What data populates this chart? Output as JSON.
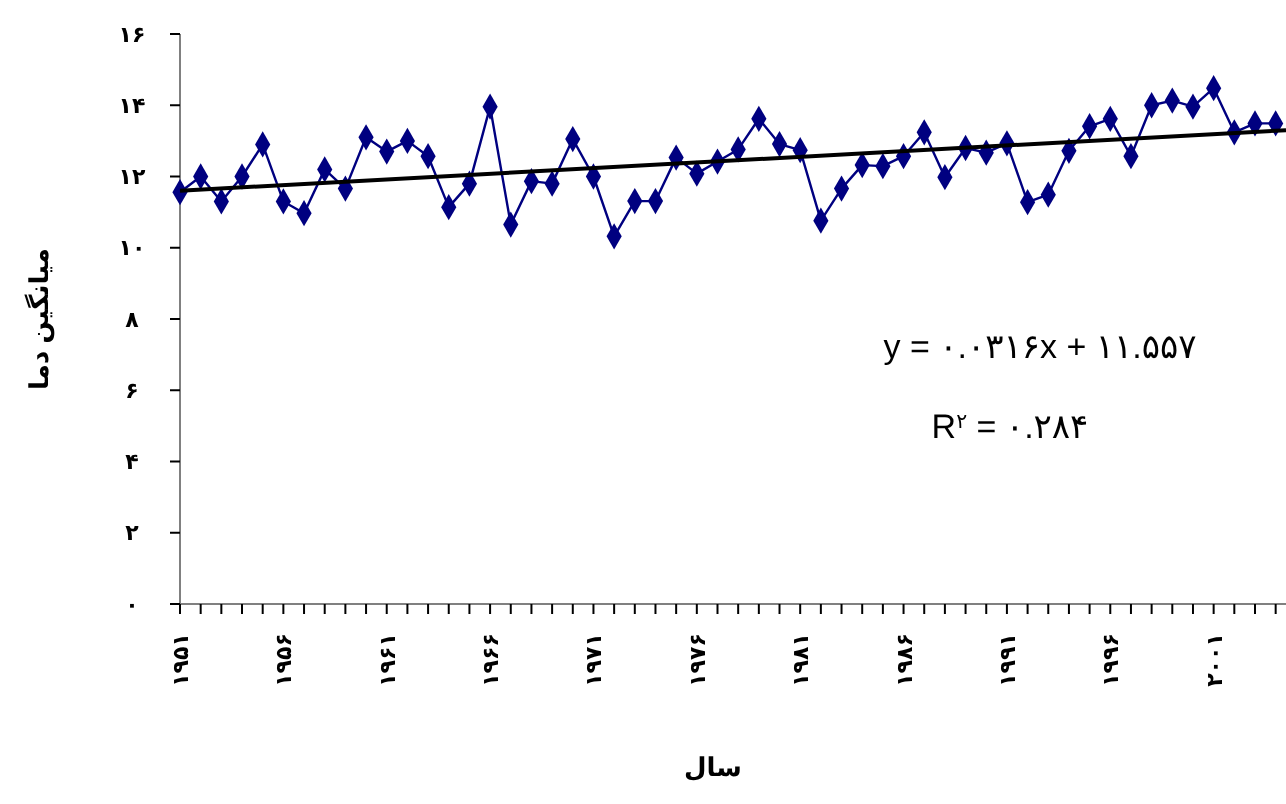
{
  "chart_data": {
    "type": "line",
    "xlabel": "سال",
    "ylabel": "میانگین دما",
    "x": [
      1951,
      1952,
      1953,
      1954,
      1955,
      1956,
      1957,
      1958,
      1959,
      1960,
      1961,
      1962,
      1963,
      1964,
      1965,
      1966,
      1967,
      1968,
      1969,
      1970,
      1971,
      1972,
      1973,
      1974,
      1975,
      1976,
      1977,
      1978,
      1979,
      1980,
      1981,
      1982,
      1983,
      1984,
      1985,
      1986,
      1987,
      1988,
      1989,
      1990,
      1991,
      1992,
      1993,
      1994,
      1995,
      1996,
      1997,
      1998,
      1999,
      2000,
      2001,
      2002,
      2003,
      2004
    ],
    "series": [
      {
        "color": "#000080",
        "marker": "diamond",
        "values": [
          11.56,
          12.0,
          11.3,
          12.0,
          12.9,
          11.3,
          10.97,
          12.2,
          11.66,
          13.1,
          12.7,
          13.0,
          12.57,
          11.14,
          11.8,
          13.96,
          10.65,
          11.87,
          11.8,
          13.05,
          12.0,
          10.32,
          11.31,
          11.31,
          12.53,
          12.08,
          12.42,
          12.76,
          13.62,
          12.91,
          12.74,
          10.76,
          11.66,
          12.32,
          12.29,
          12.57,
          13.24,
          11.98,
          12.8,
          12.67,
          12.93,
          11.28,
          11.49,
          12.72,
          13.41,
          13.62,
          12.57,
          14.0,
          14.13,
          13.96,
          14.48,
          13.24,
          13.49,
          13.49
        ]
      },
      {
        "color": "#000000",
        "marker": "none",
        "x": [
          1951,
          2004.5
        ],
        "values": [
          11.6,
          13.3
        ]
      }
    ],
    "xlim": [
      1951,
      2004.5
    ],
    "xticks": [
      {
        "value": 1951,
        "label": "۱۹۵۱"
      },
      {
        "value": 1952,
        "label": null
      },
      {
        "value": 1953,
        "label": null
      },
      {
        "value": 1954,
        "label": null
      },
      {
        "value": 1955,
        "label": null
      },
      {
        "value": 1956,
        "label": "۱۹۵۶"
      },
      {
        "value": 1957,
        "label": null
      },
      {
        "value": 1958,
        "label": null
      },
      {
        "value": 1959,
        "label": null
      },
      {
        "value": 1960,
        "label": null
      },
      {
        "value": 1961,
        "label": "۱۹۶۱"
      },
      {
        "value": 1962,
        "label": null
      },
      {
        "value": 1963,
        "label": null
      },
      {
        "value": 1964,
        "label": null
      },
      {
        "value": 1965,
        "label": null
      },
      {
        "value": 1966,
        "label": "۱۹۶۶"
      },
      {
        "value": 1967,
        "label": null
      },
      {
        "value": 1968,
        "label": null
      },
      {
        "value": 1969,
        "label": null
      },
      {
        "value": 1970,
        "label": null
      },
      {
        "value": 1971,
        "label": "۱۹۷۱"
      },
      {
        "value": 1972,
        "label": null
      },
      {
        "value": 1973,
        "label": null
      },
      {
        "value": 1974,
        "label": null
      },
      {
        "value": 1975,
        "label": null
      },
      {
        "value": 1976,
        "label": "۱۹۷۶"
      },
      {
        "value": 1977,
        "label": null
      },
      {
        "value": 1978,
        "label": null
      },
      {
        "value": 1979,
        "label": null
      },
      {
        "value": 1980,
        "label": null
      },
      {
        "value": 1981,
        "label": "۱۹۸۱"
      },
      {
        "value": 1982,
        "label": null
      },
      {
        "value": 1983,
        "label": null
      },
      {
        "value": 1984,
        "label": null
      },
      {
        "value": 1985,
        "label": null
      },
      {
        "value": 1986,
        "label": "۱۹۸۶"
      },
      {
        "value": 1987,
        "label": null
      },
      {
        "value": 1988,
        "label": null
      },
      {
        "value": 1989,
        "label": null
      },
      {
        "value": 1990,
        "label": null
      },
      {
        "value": 1991,
        "label": "۱۹۹۱"
      },
      {
        "value": 1992,
        "label": null
      },
      {
        "value": 1993,
        "label": null
      },
      {
        "value": 1994,
        "label": null
      },
      {
        "value": 1995,
        "label": null
      },
      {
        "value": 1996,
        "label": "۱۹۹۶"
      },
      {
        "value": 1997,
        "label": null
      },
      {
        "value": 1998,
        "label": null
      },
      {
        "value": 1999,
        "label": null
      },
      {
        "value": 2000,
        "label": null
      },
      {
        "value": 2001,
        "label": "۲۰۰۱"
      },
      {
        "value": 2002,
        "label": null
      },
      {
        "value": 2003,
        "label": null
      },
      {
        "value": 2004,
        "label": null
      }
    ],
    "ylim": [
      0,
      16
    ],
    "yticks": [
      {
        "value": 0,
        "label": "۰"
      },
      {
        "value": 2,
        "label": "۲"
      },
      {
        "value": 4,
        "label": "۴"
      },
      {
        "value": 6,
        "label": "۶"
      },
      {
        "value": 8,
        "label": "۸"
      },
      {
        "value": 10,
        "label": "۱۰"
      },
      {
        "value": 12,
        "label": "۱۲"
      },
      {
        "value": 14,
        "label": "۱۴"
      },
      {
        "value": 16,
        "label": "۱۶"
      }
    ],
    "annotations": [
      "y = ۰.۰۳۱۶x + ۱۱.۵۵۷",
      "R$^{۲}$ = ۰.۲۸۴"
    ],
    "grid": false
  }
}
